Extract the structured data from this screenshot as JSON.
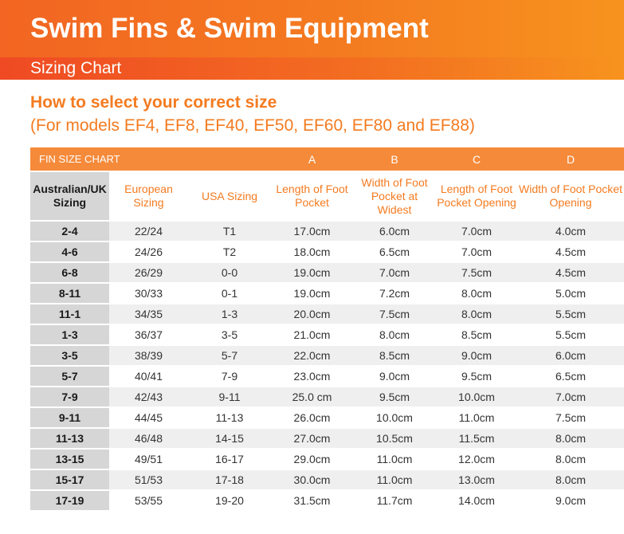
{
  "header": {
    "title": "Swim Fins & Swim Equipment",
    "subtitle": "Sizing Chart"
  },
  "intro": {
    "heading": "How to select your correct size",
    "subheading": "(For models EF4, EF8, EF40, EF50, EF60, EF80 and EF88)"
  },
  "table": {
    "group_label": "FIN SIZE CHART",
    "letters": [
      "A",
      "B",
      "C",
      "D"
    ],
    "columns": [
      "Australian/UK Sizing",
      "European Sizing",
      "USA Sizing",
      "Length of Foot Pocket",
      "Width of Foot Pocket at Widest",
      "Length of Foot Pocket Opening",
      "Width of Foot Pocket Opening"
    ],
    "rows": [
      [
        "2-4",
        "22/24",
        "T1",
        "17.0cm",
        "6.0cm",
        "7.0cm",
        "4.0cm"
      ],
      [
        "4-6",
        "24/26",
        "T2",
        "18.0cm",
        "6.5cm",
        "7.0cm",
        "4.5cm"
      ],
      [
        "6-8",
        "26/29",
        "0-0",
        "19.0cm",
        "7.0cm",
        "7.5cm",
        "4.5cm"
      ],
      [
        "8-11",
        "30/33",
        "0-1",
        "19.0cm",
        "7.2cm",
        "8.0cm",
        "5.0cm"
      ],
      [
        "11-1",
        "34/35",
        "1-3",
        "20.0cm",
        "7.5cm",
        "8.0cm",
        "5.5cm"
      ],
      [
        "1-3",
        "36/37",
        "3-5",
        "21.0cm",
        "8.0cm",
        "8.5cm",
        "5.5cm"
      ],
      [
        "3-5",
        "38/39",
        "5-7",
        "22.0cm",
        "8.5cm",
        "9.0cm",
        "6.0cm"
      ],
      [
        "5-7",
        "40/41",
        "7-9",
        "23.0cm",
        "9.0cm",
        "9.5cm",
        "6.5cm"
      ],
      [
        "7-9",
        "42/43",
        "9-11",
        "25.0 cm",
        "9.5cm",
        "10.0cm",
        "7.0cm"
      ],
      [
        "9-11",
        "44/45",
        "11-13",
        "26.0cm",
        "10.0cm",
        "11.0cm",
        "7.5cm"
      ],
      [
        "11-13",
        "46/48",
        "14-15",
        "27.0cm",
        "10.5cm",
        "11.5cm",
        "8.0cm"
      ],
      [
        "13-15",
        "49/51",
        "16-17",
        "29.0cm",
        "11.0cm",
        "12.0cm",
        "8.0cm"
      ],
      [
        "15-17",
        "51/53",
        "17-18",
        "30.0cm",
        "11.0cm",
        "13.0cm",
        "8.0cm"
      ],
      [
        "17-19",
        "53/55",
        "19-20",
        "31.5cm",
        "11.7cm",
        "14.0cm",
        "9.0cm"
      ]
    ]
  },
  "colors": {
    "brand_orange": "#f47b20",
    "first_column_grey": "#d6d6d6"
  }
}
